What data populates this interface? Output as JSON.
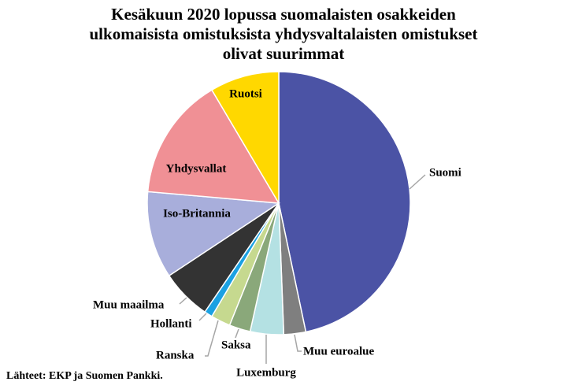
{
  "chart_data": {
    "type": "pie",
    "title": "Kesäkuun 2020 lopussa suomalaisten osakkeiden ulkomaisista omistuksista yhdysvaltalaisten omistukset olivat suurimmat",
    "source": "Lähteet: EKP ja Suomen Pankki.",
    "categories": [
      "Suomi",
      "Muu euroalue",
      "Luxemburg",
      "Saksa",
      "Ranska",
      "Hollanti",
      "Muu maailma",
      "Iso-Britannia",
      "Yhdysvallat",
      "Ruotsi"
    ],
    "values": [
      46.7,
      2.7,
      4.1,
      2.6,
      2.4,
      1.0,
      6.2,
      10.7,
      15.1,
      8.5
    ],
    "colors": [
      "#4b53a5",
      "#7f7f7f",
      "#b4e1e3",
      "#8aa87a",
      "#c6d98f",
      "#1ba1e2",
      "#333333",
      "#a8aedb",
      "#f09095",
      "#ffd800"
    ]
  }
}
